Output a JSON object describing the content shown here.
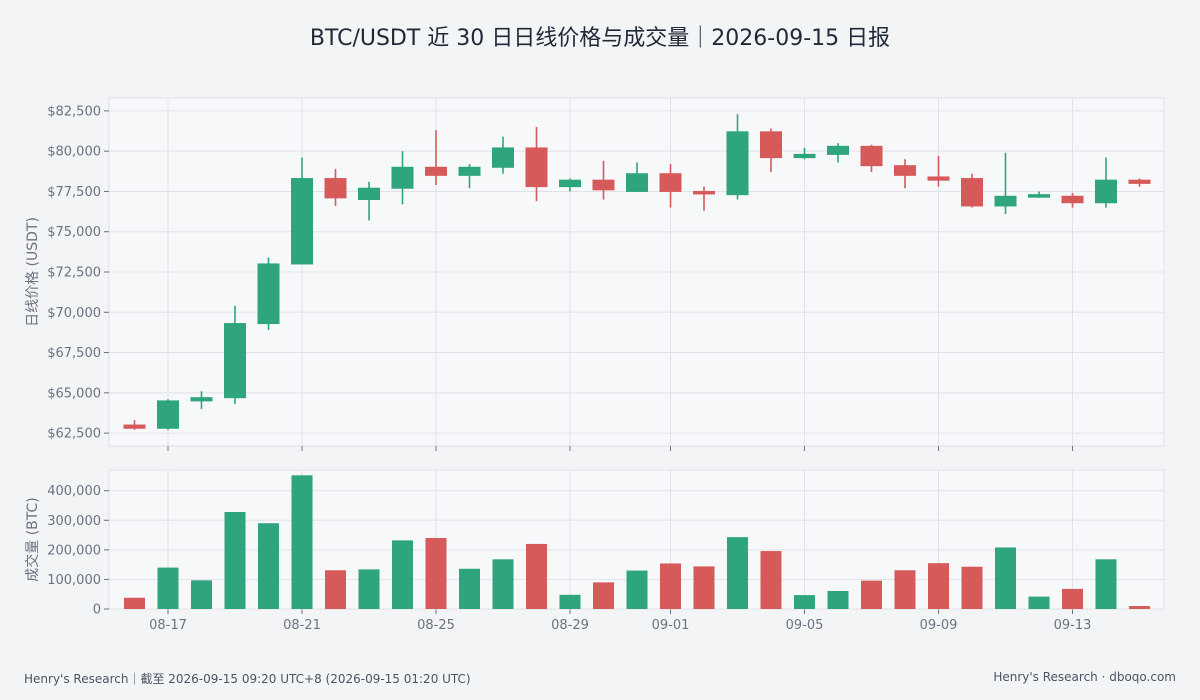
{
  "title": "BTC/USDT 近 30 日日线价格与成交量｜2026-09-15 日报",
  "footer": {
    "left": "Henry's Research｜截至 2026-09-15 09:20 UTC+8 (2026-09-15 01:20 UTC)",
    "right": "Henry's Research · dboqo.com"
  },
  "colors": {
    "up": "#2ea57c",
    "down": "#d65a5a",
    "panel_bg": "#f7f8fa",
    "grid": "#dfe2e8",
    "axis_text": "#6b7280",
    "title_text": "#1f2937"
  },
  "chart_data": [
    {
      "type": "candlestick",
      "ylabel": "日线价格 (USDT)",
      "ylim": [
        61700,
        83300
      ],
      "yticks": [
        62500,
        65000,
        67500,
        70000,
        72500,
        75000,
        77500,
        80000,
        82500
      ],
      "ytick_labels": [
        "$62,500",
        "$65,000",
        "$67,500",
        "$70,000",
        "$72,500",
        "$75,000",
        "$77,500",
        "$80,000",
        "$82,500"
      ],
      "grid": true,
      "dates": [
        "2026-08-16",
        "2026-08-17",
        "2026-08-18",
        "2026-08-19",
        "2026-08-20",
        "2026-08-21",
        "2026-08-22",
        "2026-08-23",
        "2026-08-24",
        "2026-08-25",
        "2026-08-26",
        "2026-08-27",
        "2026-08-28",
        "2026-08-29",
        "2026-08-30",
        "2026-08-31",
        "2026-09-01",
        "2026-09-02",
        "2026-09-03",
        "2026-09-04",
        "2026-09-05",
        "2026-09-06",
        "2026-09-07",
        "2026-09-08",
        "2026-09-09",
        "2026-09-10",
        "2026-09-11",
        "2026-09-12",
        "2026-09-13",
        "2026-09-14",
        "2026-09-15"
      ],
      "open": [
        63000,
        62800,
        64500,
        64700,
        69300,
        73000,
        78300,
        77000,
        77700,
        79000,
        78500,
        79000,
        80200,
        77800,
        78200,
        77500,
        78600,
        77500,
        77300,
        81200,
        79600,
        79800,
        80300,
        79100,
        78400,
        78300,
        76600,
        77200,
        77200,
        76800,
        78200
      ],
      "high": [
        63300,
        64600,
        65100,
        70400,
        73400,
        79600,
        78900,
        78100,
        80000,
        81300,
        79200,
        80900,
        81500,
        78300,
        79400,
        79300,
        79200,
        77800,
        82300,
        81400,
        80200,
        80500,
        80400,
        79500,
        79700,
        78600,
        79900,
        77500,
        77400,
        79600,
        78300
      ],
      "low": [
        62700,
        62700,
        64000,
        64300,
        68900,
        73000,
        76600,
        75700,
        76700,
        77900,
        77700,
        78600,
        76900,
        77500,
        77000,
        77500,
        76500,
        76300,
        77000,
        78700,
        79500,
        79300,
        78700,
        77700,
        77800,
        76500,
        76100,
        77100,
        76500,
        76500,
        77800
      ],
      "close": [
        62800,
        64500,
        64700,
        69300,
        73000,
        78300,
        77100,
        77700,
        79000,
        78500,
        79000,
        80200,
        77800,
        78200,
        77600,
        78600,
        77500,
        77400,
        81200,
        79600,
        79800,
        80300,
        79100,
        78500,
        78200,
        76600,
        77200,
        77300,
        76800,
        78200,
        78000
      ]
    },
    {
      "type": "bar",
      "ylabel": "成交量 (BTC)",
      "ylim": [
        0,
        470000
      ],
      "yticks": [
        0,
        100000,
        200000,
        300000,
        400000
      ],
      "ytick_labels": [
        "0",
        "100,000",
        "200,000",
        "300,000",
        "400,000"
      ],
      "grid": true,
      "values": [
        38000,
        140000,
        97000,
        328000,
        290000,
        452000,
        131000,
        134000,
        232000,
        240000,
        136000,
        168000,
        220000,
        48000,
        90000,
        130000,
        154000,
        144000,
        243000,
        196000,
        47000,
        61000,
        96000,
        131000,
        155000,
        143000,
        208000,
        42000,
        68000,
        168000,
        10000
      ]
    }
  ],
  "xaxis": {
    "tick_dates": [
      "2026-08-17",
      "2026-08-21",
      "2026-08-25",
      "2026-08-29",
      "2026-09-01",
      "2026-09-05",
      "2026-09-09",
      "2026-09-13"
    ],
    "tick_labels": [
      "08-17",
      "08-21",
      "08-25",
      "08-29",
      "09-01",
      "09-05",
      "09-09",
      "09-13"
    ]
  }
}
